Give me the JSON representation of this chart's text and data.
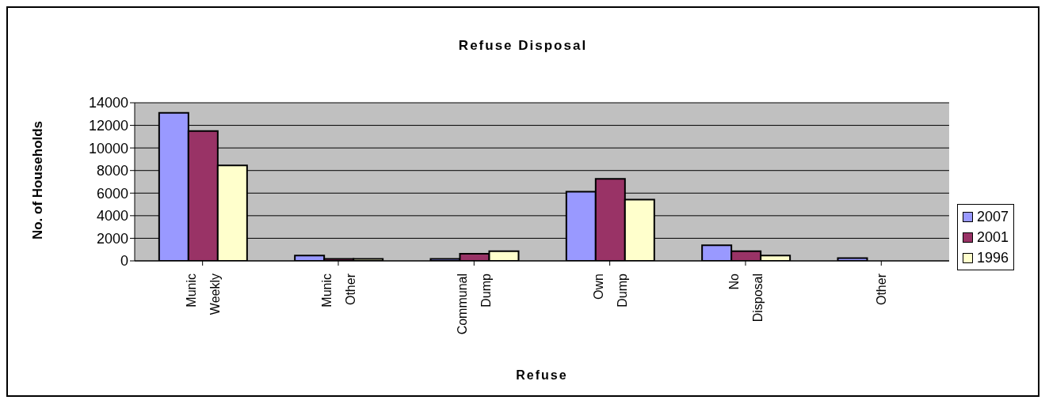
{
  "chart_data": {
    "type": "bar",
    "title": "Refuse Disposal",
    "xlabel": "Refuse",
    "ylabel": "No. of Households",
    "categories": [
      "Munic Weekly",
      "Munic Other",
      "Communal Dump",
      "Own Dump",
      "No Disposal",
      "Other"
    ],
    "series": [
      {
        "name": "2007",
        "color": "#9999ff",
        "values": [
          13100,
          480,
          180,
          6130,
          1390,
          250
        ]
      },
      {
        "name": "2001",
        "color": "#993366",
        "values": [
          11500,
          180,
          630,
          7260,
          860,
          0
        ]
      },
      {
        "name": "1996",
        "color": "#ffffcc",
        "values": [
          8450,
          180,
          860,
          5420,
          480,
          0
        ]
      }
    ],
    "ylim": [
      0,
      14000
    ],
    "yticks": [
      0,
      2000,
      4000,
      6000,
      8000,
      10000,
      12000,
      14000
    ],
    "grid": "y",
    "legend": "right"
  }
}
